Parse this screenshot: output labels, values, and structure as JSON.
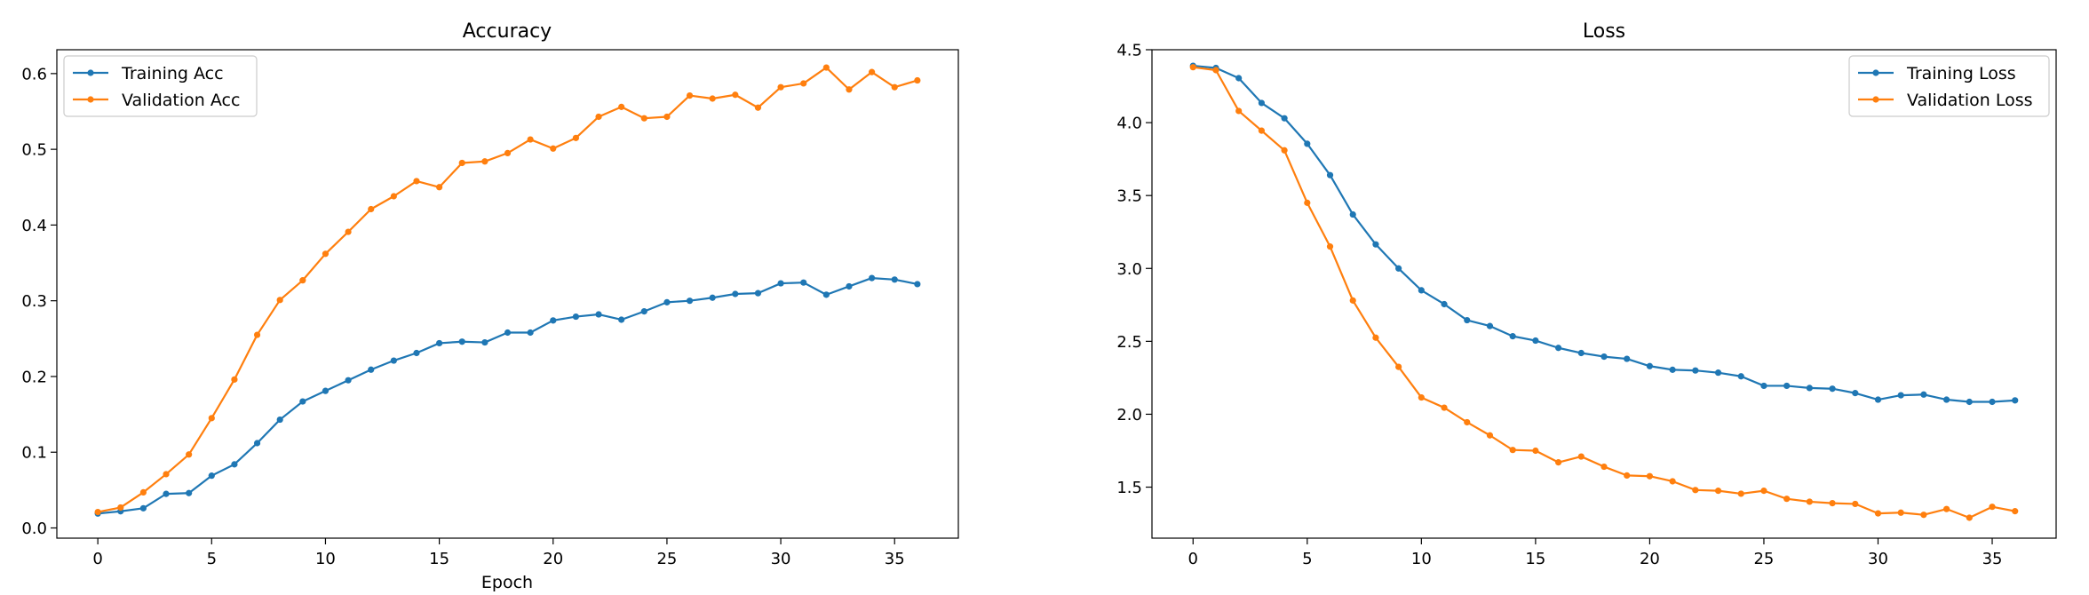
{
  "colors": {
    "training": "#1f77b4",
    "validation": "#ff7f0e"
  },
  "chart_data": [
    {
      "type": "line",
      "title": "Accuracy",
      "xlabel": "Epoch",
      "ylabel": "",
      "xlim": [
        -1.8,
        37.8
      ],
      "ylim": [
        -0.0135,
        0.6315
      ],
      "xticks": [
        0,
        5,
        10,
        15,
        20,
        25,
        30,
        35
      ],
      "yticks": [
        0.0,
        0.1,
        0.2,
        0.3,
        0.4,
        0.5,
        0.6
      ],
      "ytick_labels": [
        "0.0",
        "0.1",
        "0.2",
        "0.3",
        "0.4",
        "0.5",
        "0.6"
      ],
      "legend_position": "upper left",
      "grid": false,
      "x": [
        0,
        1,
        2,
        3,
        4,
        5,
        6,
        7,
        8,
        9,
        10,
        11,
        12,
        13,
        14,
        15,
        16,
        17,
        18,
        19,
        20,
        21,
        22,
        23,
        24,
        25,
        26,
        27,
        28,
        29,
        30,
        31,
        32,
        33,
        34,
        35,
        36
      ],
      "series": [
        {
          "name": "Training Acc",
          "color_key": "training",
          "values": [
            0.019,
            0.022,
            0.026,
            0.045,
            0.046,
            0.069,
            0.084,
            0.112,
            0.143,
            0.167,
            0.181,
            0.195,
            0.209,
            0.221,
            0.231,
            0.244,
            0.246,
            0.245,
            0.258,
            0.258,
            0.274,
            0.279,
            0.282,
            0.275,
            0.286,
            0.298,
            0.3,
            0.304,
            0.309,
            0.31,
            0.323,
            0.324,
            0.308,
            0.319,
            0.33,
            0.328,
            0.322
          ]
        },
        {
          "name": "Validation Acc",
          "color_key": "validation",
          "values": [
            0.021,
            0.027,
            0.047,
            0.071,
            0.097,
            0.145,
            0.196,
            0.255,
            0.301,
            0.327,
            0.362,
            0.391,
            0.421,
            0.438,
            0.458,
            0.45,
            0.482,
            0.484,
            0.495,
            0.513,
            0.501,
            0.515,
            0.543,
            0.556,
            0.541,
            0.543,
            0.571,
            0.567,
            0.572,
            0.555,
            0.582,
            0.587,
            0.608,
            0.579,
            0.602,
            0.582,
            0.591
          ]
        }
      ]
    },
    {
      "type": "line",
      "title": "Loss",
      "xlabel": "",
      "ylabel": "",
      "xlim": [
        -1.8,
        37.8
      ],
      "ylim": [
        1.15,
        4.5
      ],
      "xticks": [
        0,
        5,
        10,
        15,
        20,
        25,
        30,
        35
      ],
      "yticks": [
        1.5,
        2.0,
        2.5,
        3.0,
        3.5,
        4.0,
        4.5
      ],
      "ytick_labels": [
        "1.5",
        "2.0",
        "2.5",
        "3.0",
        "3.5",
        "4.0",
        "4.5"
      ],
      "legend_position": "upper right",
      "grid": false,
      "x": [
        0,
        1,
        2,
        3,
        4,
        5,
        6,
        7,
        8,
        9,
        10,
        11,
        12,
        13,
        14,
        15,
        16,
        17,
        18,
        19,
        20,
        21,
        22,
        23,
        24,
        25,
        26,
        27,
        28,
        29,
        30,
        31,
        32,
        33,
        34,
        35,
        36
      ],
      "series": [
        {
          "name": "Training Loss",
          "color_key": "training",
          "values": [
            4.39,
            4.375,
            4.305,
            4.135,
            4.03,
            3.855,
            3.64,
            3.37,
            3.165,
            3.0,
            2.85,
            2.755,
            2.645,
            2.605,
            2.535,
            2.505,
            2.455,
            2.42,
            2.395,
            2.38,
            2.33,
            2.305,
            2.3,
            2.285,
            2.26,
            2.195,
            2.195,
            2.18,
            2.175,
            2.145,
            2.1,
            2.13,
            2.135,
            2.1,
            2.085,
            2.085,
            2.095
          ]
        },
        {
          "name": "Validation Loss",
          "color_key": "validation",
          "values": [
            4.38,
            4.36,
            4.08,
            3.945,
            3.81,
            3.45,
            3.15,
            2.78,
            2.525,
            2.325,
            2.115,
            2.045,
            1.945,
            1.855,
            1.755,
            1.75,
            1.67,
            1.71,
            1.64,
            1.58,
            1.575,
            1.54,
            1.48,
            1.475,
            1.455,
            1.475,
            1.42,
            1.4,
            1.39,
            1.385,
            1.32,
            1.325,
            1.31,
            1.35,
            1.29,
            1.365,
            1.335
          ]
        }
      ]
    }
  ]
}
